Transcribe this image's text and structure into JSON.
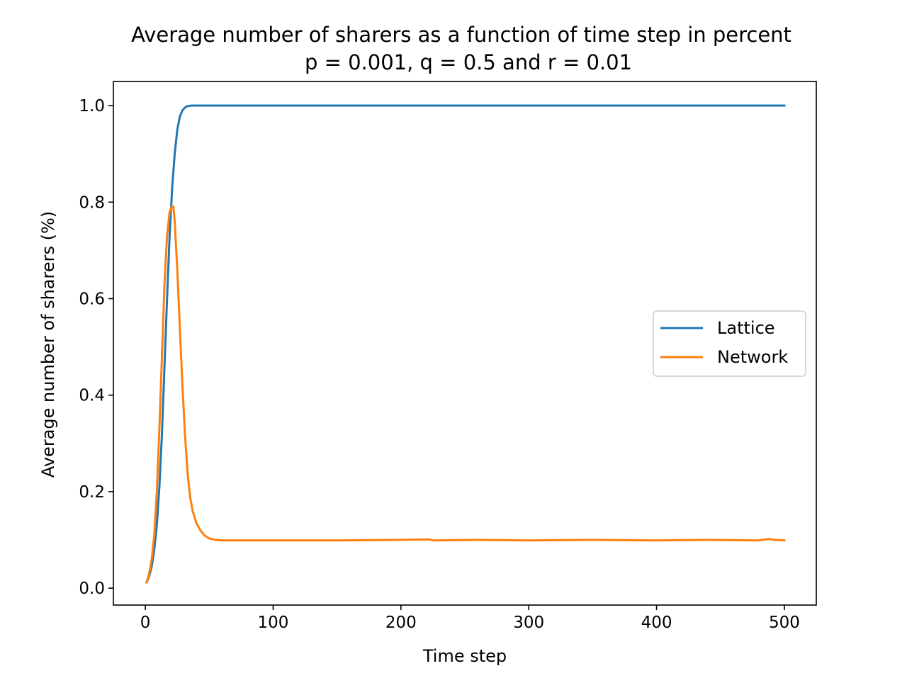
{
  "chart_data": {
    "type": "line",
    "title": "Average number of sharers as a function of time step in percent",
    "subtitle": "p = 0.001, q = 0.5 and r = 0.01",
    "xlabel": "Time step",
    "ylabel": "Average number of sharers (%)",
    "xlim": [
      -25,
      525
    ],
    "ylim": [
      -0.035,
      1.05
    ],
    "xticks": [
      0,
      100,
      200,
      300,
      400,
      500
    ],
    "xtick_labels": [
      "0",
      "100",
      "200",
      "300",
      "400",
      "500"
    ],
    "yticks": [
      0.0,
      0.2,
      0.4,
      0.6,
      0.8,
      1.0
    ],
    "ytick_labels": [
      "0.0",
      "0.2",
      "0.4",
      "0.6",
      "0.8",
      "1.0"
    ],
    "grid": false,
    "legend_position": "center-right",
    "series": [
      {
        "name": "Lattice",
        "color": "#1f77b4",
        "points": [
          [
            1,
            0.012
          ],
          [
            3,
            0.025
          ],
          [
            5,
            0.045
          ],
          [
            7,
            0.08
          ],
          [
            9,
            0.13
          ],
          [
            11,
            0.21
          ],
          [
            13,
            0.32
          ],
          [
            15,
            0.46
          ],
          [
            17,
            0.6
          ],
          [
            19,
            0.73
          ],
          [
            21,
            0.83
          ],
          [
            23,
            0.9
          ],
          [
            25,
            0.95
          ],
          [
            27,
            0.977
          ],
          [
            29,
            0.99
          ],
          [
            31,
            0.996
          ],
          [
            33,
            0.999
          ],
          [
            36,
            1.0
          ],
          [
            50,
            1.0
          ],
          [
            100,
            1.0
          ],
          [
            200,
            1.0
          ],
          [
            300,
            1.0
          ],
          [
            400,
            1.0
          ],
          [
            500,
            1.0
          ]
        ]
      },
      {
        "name": "Network",
        "color": "#ff7f0e",
        "points": [
          [
            1,
            0.012
          ],
          [
            3,
            0.03
          ],
          [
            5,
            0.06
          ],
          [
            7,
            0.11
          ],
          [
            9,
            0.2
          ],
          [
            11,
            0.33
          ],
          [
            13,
            0.48
          ],
          [
            15,
            0.63
          ],
          [
            17,
            0.73
          ],
          [
            19,
            0.78
          ],
          [
            21,
            0.792
          ],
          [
            22,
            0.79
          ],
          [
            23,
            0.76
          ],
          [
            25,
            0.66
          ],
          [
            27,
            0.54
          ],
          [
            29,
            0.42
          ],
          [
            31,
            0.32
          ],
          [
            33,
            0.24
          ],
          [
            35,
            0.19
          ],
          [
            37,
            0.16
          ],
          [
            40,
            0.135
          ],
          [
            43,
            0.12
          ],
          [
            46,
            0.11
          ],
          [
            50,
            0.103
          ],
          [
            55,
            0.1
          ],
          [
            60,
            0.099
          ],
          [
            100,
            0.099
          ],
          [
            150,
            0.099
          ],
          [
            200,
            0.1
          ],
          [
            222,
            0.101
          ],
          [
            225,
            0.099
          ],
          [
            260,
            0.1
          ],
          [
            300,
            0.099
          ],
          [
            350,
            0.1
          ],
          [
            400,
            0.099
          ],
          [
            440,
            0.1
          ],
          [
            480,
            0.099
          ],
          [
            488,
            0.102
          ],
          [
            492,
            0.1
          ],
          [
            500,
            0.099
          ]
        ]
      }
    ]
  }
}
